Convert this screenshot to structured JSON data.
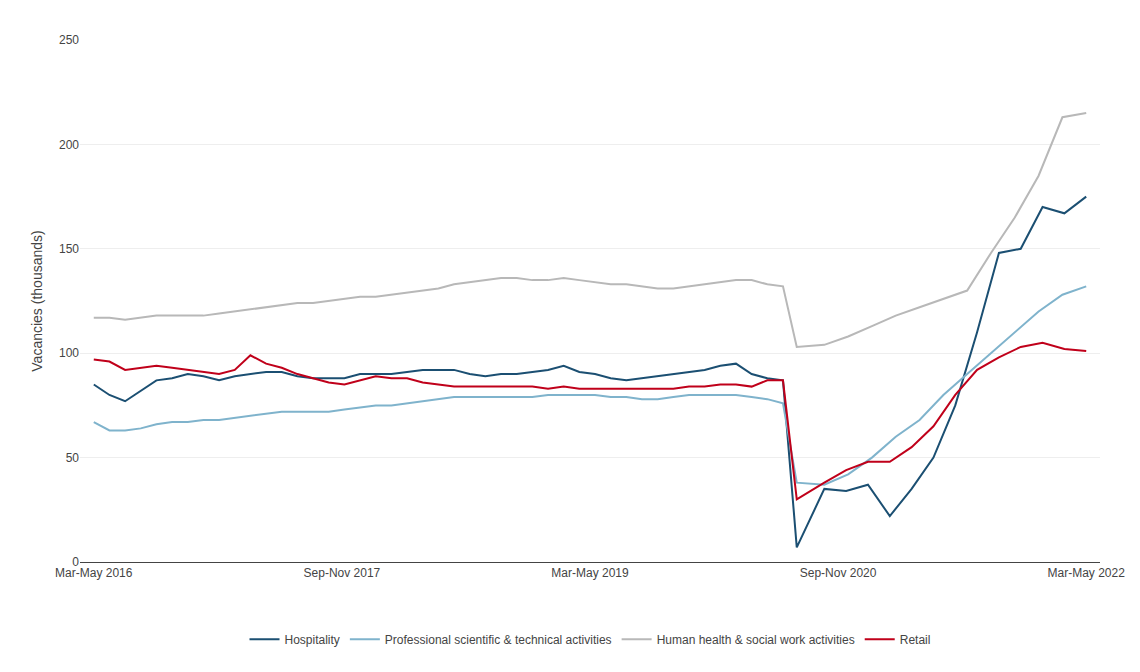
{
  "chart_data": {
    "type": "line",
    "ylabel": "Vacancies (thousands)",
    "xlim": [
      -1,
      73
    ],
    "xticks": [
      {
        "value": 0,
        "label": "Mar-May 2016"
      },
      {
        "value": 18,
        "label": "Sep-Nov 2017"
      },
      {
        "value": 36,
        "label": "Mar-May 2019"
      },
      {
        "value": 54,
        "label": "Sep-Nov 2020"
      },
      {
        "value": 72,
        "label": "Mar-May 2022"
      }
    ],
    "ylim": [
      0,
      250
    ],
    "yticks": [
      0,
      50,
      100,
      150,
      200,
      250
    ],
    "grid": true,
    "legend": "bottom",
    "series": [
      {
        "name": "Hospitality",
        "color": "#1b4f72",
        "x": [
          0,
          1.136364,
          2.272727,
          3.409091,
          4.545455,
          5.681818,
          6.818182,
          7.954545,
          9.090909,
          10.227273,
          11.363636,
          12.5,
          13.636364,
          14.772727,
          15.909091,
          17.045455,
          18.181818,
          19.318182,
          20.454545,
          21.590909,
          22.727273,
          23.863636,
          25,
          26.136364,
          27.272727,
          28.409091,
          29.545455,
          30.681818,
          31.818182,
          32.954545,
          34.090909,
          35.227273,
          36.363636,
          37.5,
          38.636364,
          39.772727,
          40.909091,
          42.045455,
          43.181818,
          44.318182,
          45.454545,
          46.590909,
          47.727273,
          48.863636,
          50,
          51,
          53,
          54.583333,
          56.166667,
          57.75,
          59.333333,
          60.916667,
          62.5,
          64.083333,
          65.666667,
          67.25,
          68.833333,
          70.416667,
          72
        ],
        "values": [
          85,
          80,
          77,
          82,
          87,
          88,
          90,
          89,
          87,
          89,
          90,
          91,
          91,
          89,
          88,
          88,
          88,
          90,
          90,
          90,
          91,
          92,
          92,
          92,
          90,
          89,
          90,
          90,
          91,
          92,
          94,
          91,
          90,
          88,
          87,
          88,
          89,
          90,
          91,
          92,
          94,
          95,
          90,
          88,
          87,
          7,
          35,
          34,
          37,
          22,
          35,
          50,
          75,
          110,
          148,
          150,
          170,
          167,
          175
        ]
      },
      {
        "name": "Professional scientific & technical activities",
        "color": "#7fb3cc",
        "x": [
          0,
          1.136364,
          2.272727,
          3.409091,
          4.545455,
          5.681818,
          6.818182,
          7.954545,
          9.090909,
          10.227273,
          11.363636,
          12.5,
          13.636364,
          14.772727,
          15.909091,
          17.045455,
          18.181818,
          19.318182,
          20.454545,
          21.590909,
          22.727273,
          23.863636,
          25,
          26.136364,
          27.272727,
          28.409091,
          29.545455,
          30.681818,
          31.818182,
          32.954545,
          34.090909,
          35.227273,
          36.363636,
          37.5,
          38.636364,
          39.772727,
          40.909091,
          42.045455,
          43.181818,
          44.318182,
          45.454545,
          46.590909,
          47.727273,
          48.863636,
          50,
          51,
          53,
          54.727273,
          56.454545,
          58.181818,
          59.909091,
          61.636364,
          63.363636,
          65.090909,
          66.818182,
          68.545455,
          70.272727,
          72
        ],
        "values": [
          67,
          63,
          63,
          64,
          66,
          67,
          67,
          68,
          68,
          69,
          70,
          71,
          72,
          72,
          72,
          72,
          73,
          74,
          75,
          75,
          76,
          77,
          78,
          79,
          79,
          79,
          79,
          79,
          79,
          80,
          80,
          80,
          80,
          79,
          79,
          78,
          78,
          79,
          80,
          80,
          80,
          80,
          79,
          78,
          76,
          38,
          37,
          42,
          50,
          60,
          68,
          80,
          90,
          100,
          110,
          120,
          128,
          132
        ]
      },
      {
        "name": "Human health & social work activities",
        "color": "#b8b8b8",
        "x": [
          0,
          1.136364,
          2.272727,
          3.409091,
          4.545455,
          5.681818,
          6.818182,
          7.954545,
          9.090909,
          10.227273,
          11.363636,
          12.5,
          13.636364,
          14.772727,
          15.909091,
          17.045455,
          18.181818,
          19.318182,
          20.454545,
          21.590909,
          22.727273,
          23.863636,
          25,
          26.136364,
          27.272727,
          28.409091,
          29.545455,
          30.681818,
          31.818182,
          32.954545,
          34.090909,
          35.227273,
          36.363636,
          37.5,
          38.636364,
          39.772727,
          40.909091,
          42.045455,
          43.181818,
          44.318182,
          45.454545,
          46.590909,
          47.727273,
          48.863636,
          50,
          51,
          53,
          54.727273,
          56.454545,
          58.181818,
          59.909091,
          61.636364,
          63.363636,
          65.090909,
          66.818182,
          68.545455,
          70.272727,
          72
        ],
        "values": [
          117,
          117,
          116,
          117,
          118,
          118,
          118,
          118,
          119,
          120,
          121,
          122,
          123,
          124,
          124,
          125,
          126,
          127,
          127,
          128,
          129,
          130,
          131,
          133,
          134,
          135,
          136,
          136,
          135,
          135,
          136,
          135,
          134,
          133,
          133,
          132,
          131,
          131,
          132,
          133,
          134,
          135,
          135,
          133,
          132,
          103,
          104,
          108,
          113,
          118,
          122,
          126,
          130,
          148,
          165,
          185,
          213,
          215
        ]
      },
      {
        "name": "Retail",
        "color": "#c0001a",
        "x": [
          0,
          1.136364,
          2.272727,
          3.409091,
          4.545455,
          5.681818,
          6.818182,
          7.954545,
          9.090909,
          10.227273,
          11.363636,
          12.5,
          13.636364,
          14.772727,
          15.909091,
          17.045455,
          18.181818,
          19.318182,
          20.454545,
          21.590909,
          22.727273,
          23.863636,
          25,
          26.136364,
          27.272727,
          28.409091,
          29.545455,
          30.681818,
          31.818182,
          32.954545,
          34.090909,
          35.227273,
          36.363636,
          37.5,
          38.636364,
          39.772727,
          40.909091,
          42.045455,
          43.181818,
          44.318182,
          45.454545,
          46.590909,
          47.727273,
          48.863636,
          50,
          51,
          53,
          54.583333,
          56.166667,
          57.75,
          59.333333,
          60.916667,
          62.5,
          64.083333,
          65.666667,
          67.25,
          68.833333,
          70.416667,
          72
        ],
        "values": [
          97,
          96,
          92,
          93,
          94,
          93,
          92,
          91,
          90,
          92,
          99,
          95,
          93,
          90,
          88,
          86,
          85,
          87,
          89,
          88,
          88,
          86,
          85,
          84,
          84,
          84,
          84,
          84,
          84,
          83,
          84,
          83,
          83,
          83,
          83,
          83,
          83,
          83,
          84,
          84,
          85,
          85,
          84,
          87,
          87,
          30,
          38,
          44,
          48,
          48,
          55,
          65,
          80,
          92,
          98,
          103,
          105,
          102,
          101
        ]
      }
    ]
  }
}
